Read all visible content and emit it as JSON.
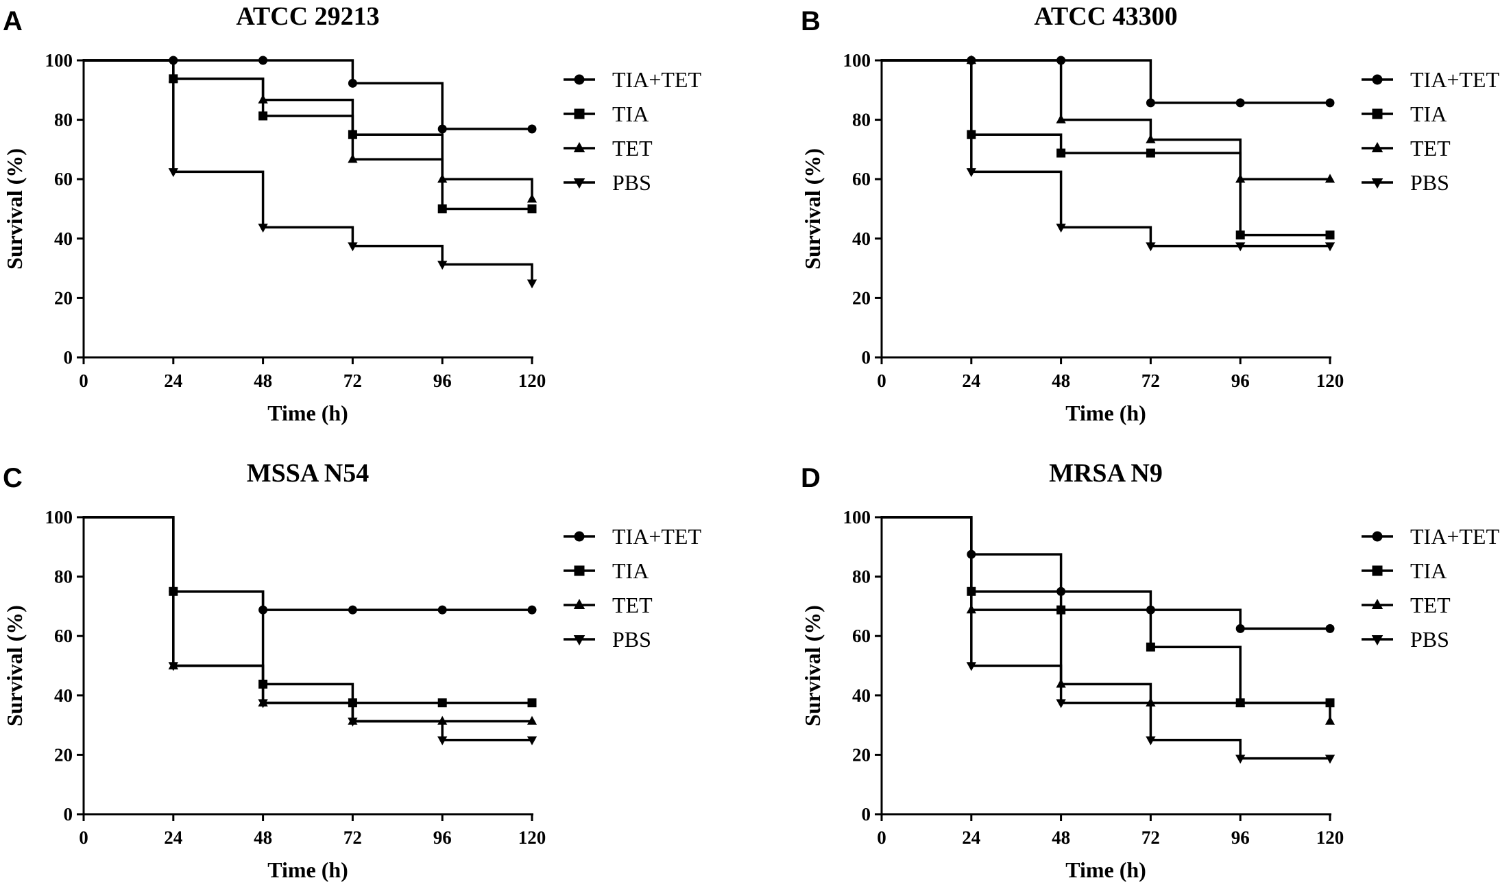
{
  "chart_data": [
    {
      "type": "line",
      "panel_letter": "A",
      "title": "ATCC 29213",
      "xlabel": "Time (h)",
      "ylabel": "Survival (%)",
      "xlim": [
        0,
        120
      ],
      "ylim": [
        0,
        100
      ],
      "xticks": [
        0,
        24,
        48,
        72,
        96,
        120
      ],
      "yticks": [
        0,
        20,
        40,
        60,
        80,
        100
      ],
      "legend_position": "right",
      "series": [
        {
          "name": "TIA+TET",
          "marker": "circle",
          "x": [
            0,
            24,
            48,
            72,
            96,
            120
          ],
          "y": [
            100,
            100,
            100,
            92.3,
            76.9,
            76.9
          ]
        },
        {
          "name": "TIA",
          "marker": "square",
          "x": [
            0,
            24,
            48,
            72,
            96,
            120
          ],
          "y": [
            100,
            93.8,
            81.3,
            75,
            50,
            50
          ]
        },
        {
          "name": "TET",
          "marker": "triangle-up",
          "x": [
            0,
            24,
            48,
            72,
            96,
            120
          ],
          "y": [
            100,
            93.8,
            86.7,
            66.7,
            60,
            53.3
          ]
        },
        {
          "name": "PBS",
          "marker": "triangle-down",
          "x": [
            0,
            24,
            48,
            72,
            96,
            120
          ],
          "y": [
            100,
            62.5,
            43.8,
            37.5,
            31.3,
            25
          ]
        }
      ]
    },
    {
      "type": "line",
      "panel_letter": "B",
      "title": "ATCC 43300",
      "xlabel": "Time (h)",
      "ylabel": "Survival (%)",
      "xlim": [
        0,
        120
      ],
      "ylim": [
        0,
        100
      ],
      "xticks": [
        0,
        24,
        48,
        72,
        96,
        120
      ],
      "yticks": [
        0,
        20,
        40,
        60,
        80,
        100
      ],
      "legend_position": "right",
      "series": [
        {
          "name": "TIA+TET",
          "marker": "circle",
          "x": [
            0,
            24,
            48,
            72,
            96,
            120
          ],
          "y": [
            100,
            100,
            100,
            85.7,
            85.7,
            85.7
          ]
        },
        {
          "name": "TIA",
          "marker": "square",
          "x": [
            0,
            24,
            48,
            72,
            96,
            120
          ],
          "y": [
            100,
            75,
            68.8,
            68.8,
            41.2,
            41.2
          ]
        },
        {
          "name": "TET",
          "marker": "triangle-up",
          "x": [
            0,
            24,
            48,
            72,
            96,
            120
          ],
          "y": [
            100,
            100,
            80,
            73.3,
            60,
            60
          ]
        },
        {
          "name": "PBS",
          "marker": "triangle-down",
          "x": [
            0,
            24,
            48,
            72,
            96,
            120
          ],
          "y": [
            100,
            62.5,
            43.8,
            37.5,
            37.5,
            37.5
          ]
        }
      ]
    },
    {
      "type": "line",
      "panel_letter": "C",
      "title": "MSSA N54",
      "xlabel": "Time (h)",
      "ylabel": "Survival (%)",
      "xlim": [
        0,
        120
      ],
      "ylim": [
        0,
        100
      ],
      "xticks": [
        0,
        24,
        48,
        72,
        96,
        120
      ],
      "yticks": [
        0,
        20,
        40,
        60,
        80,
        100
      ],
      "legend_position": "right",
      "series": [
        {
          "name": "TIA+TET",
          "marker": "circle",
          "x": [
            0,
            24,
            48,
            72,
            96,
            120
          ],
          "y": [
            100,
            75,
            68.8,
            68.8,
            68.8,
            68.8
          ]
        },
        {
          "name": "TIA",
          "marker": "square",
          "x": [
            0,
            24,
            48,
            72,
            96,
            120
          ],
          "y": [
            100,
            75,
            43.8,
            37.5,
            37.5,
            37.5
          ]
        },
        {
          "name": "TET",
          "marker": "triangle-up",
          "x": [
            0,
            24,
            48,
            72,
            96,
            120
          ],
          "y": [
            100,
            50,
            37.5,
            31.3,
            31.3,
            31.3
          ]
        },
        {
          "name": "PBS",
          "marker": "triangle-down",
          "x": [
            0,
            24,
            48,
            72,
            96,
            120
          ],
          "y": [
            100,
            50,
            37.5,
            31.3,
            25,
            25
          ]
        }
      ]
    },
    {
      "type": "line",
      "panel_letter": "D",
      "title": "MRSA N9",
      "xlabel": "Time (h)",
      "ylabel": "Survival (%)",
      "xlim": [
        0,
        120
      ],
      "ylim": [
        0,
        100
      ],
      "xticks": [
        0,
        24,
        48,
        72,
        96,
        120
      ],
      "yticks": [
        0,
        20,
        40,
        60,
        80,
        100
      ],
      "legend_position": "right",
      "series": [
        {
          "name": "TIA+TET",
          "marker": "circle",
          "x": [
            0,
            24,
            48,
            72,
            96,
            120
          ],
          "y": [
            100,
            87.5,
            75,
            68.8,
            62.5,
            62.5
          ]
        },
        {
          "name": "TIA",
          "marker": "square",
          "x": [
            0,
            24,
            48,
            72,
            96,
            120
          ],
          "y": [
            100,
            75,
            68.8,
            56.3,
            37.5,
            37.5
          ]
        },
        {
          "name": "TET",
          "marker": "triangle-up",
          "x": [
            0,
            24,
            48,
            72,
            96,
            120
          ],
          "y": [
            100,
            68.8,
            43.8,
            37.5,
            37.5,
            31.3
          ]
        },
        {
          "name": "PBS",
          "marker": "triangle-down",
          "x": [
            0,
            24,
            48,
            72,
            96,
            120
          ],
          "y": [
            100,
            50,
            37.5,
            25,
            18.8,
            18.8
          ]
        }
      ]
    }
  ]
}
